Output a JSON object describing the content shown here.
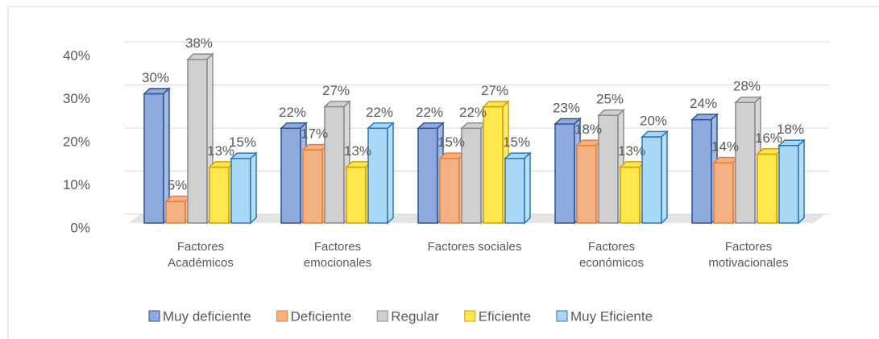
{
  "chart_data": {
    "type": "bar3d",
    "categories": [
      "Factores Académicos",
      "Factores emocionales",
      "Factores sociales",
      "Factores económicos",
      "Factores motivacionales"
    ],
    "series": [
      {
        "name": "Muy deficiente",
        "color": "#8faadc",
        "edge": "#2f5597",
        "values": [
          30,
          22,
          22,
          23,
          24
        ],
        "value_labels": [
          "30%",
          "22%",
          "22%",
          "23%",
          "24%"
        ]
      },
      {
        "name": "Deficiente",
        "color": "#f4b183",
        "edge": "#ed7d31",
        "values": [
          5,
          17,
          15,
          18,
          14
        ],
        "value_labels": [
          "5%",
          "17%",
          "15%",
          "18%",
          "14%"
        ]
      },
      {
        "name": "Regular",
        "color": "#d0d0d0",
        "edge": "#8c8c8c",
        "values": [
          38,
          27,
          22,
          25,
          28
        ],
        "value_labels": [
          "38%",
          "27%",
          "22%",
          "25%",
          "28%"
        ]
      },
      {
        "name": "Eficiente",
        "color": "#ffe84d",
        "edge": "#d4a000",
        "values": [
          13,
          13,
          27,
          13,
          16
        ],
        "value_labels": [
          "13%",
          "13%",
          "27%",
          "13%",
          "16%"
        ]
      },
      {
        "name": "Muy Eficiente",
        "color": "#a9d8f7",
        "edge": "#2e75b6",
        "values": [
          15,
          22,
          15,
          20,
          18
        ],
        "value_labels": [
          "15%",
          "22%",
          "15%",
          "20%",
          "18%"
        ]
      }
    ],
    "ylim": [
      0,
      40
    ],
    "yticks": [
      {
        "value": 0,
        "label": "0%"
      },
      {
        "value": 10,
        "label": "10%"
      },
      {
        "value": 20,
        "label": "20%"
      },
      {
        "value": 30,
        "label": "30%"
      },
      {
        "value": 40,
        "label": "40%"
      }
    ],
    "grid": true,
    "legend": "bottom"
  }
}
